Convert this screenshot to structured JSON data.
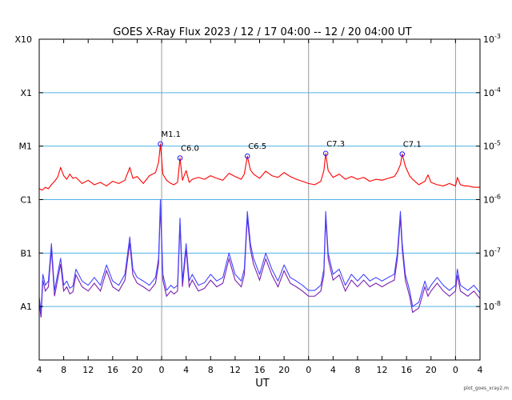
{
  "chart_data": {
    "type": "line",
    "title": "GOES X-Ray Flux   2023 / 12 / 17   04:00 -- 12 / 20   04:00   UT",
    "xlabel": "UT",
    "footer": "plot_goes_xray2.m",
    "x_ticks": [
      "4",
      "8",
      "12",
      "16",
      "20",
      "0",
      "4",
      "8",
      "12",
      "16",
      "20",
      "0",
      "4",
      "8",
      "12",
      "16",
      "20",
      "0",
      "4"
    ],
    "x_range_hours": [
      0,
      72
    ],
    "day_boundaries_hours": [
      20,
      44,
      68
    ],
    "y_scale": "log",
    "y_range": [
      1e-09,
      0.001
    ],
    "left_ticks": [
      {
        "label": "A1",
        "value": 1e-08
      },
      {
        "label": "B1",
        "value": 1e-07
      },
      {
        "label": "C1",
        "value": 1e-06
      },
      {
        "label": "M1",
        "value": 1e-05
      },
      {
        "label": "X1",
        "value": 0.0001
      },
      {
        "label": "X10",
        "value": 0.001
      }
    ],
    "right_ticks": [
      {
        "base": "10",
        "exp": "-8",
        "value": 1e-08
      },
      {
        "base": "10",
        "exp": "-7",
        "value": 1e-07
      },
      {
        "base": "10",
        "exp": "-6",
        "value": 1e-06
      },
      {
        "base": "10",
        "exp": "-5",
        "value": 1e-05
      },
      {
        "base": "10",
        "exp": "-4",
        "value": 0.0001
      },
      {
        "base": "10",
        "exp": "-3",
        "value": 0.001
      }
    ],
    "class_gridlines": [
      1e-08,
      1e-07,
      1e-06,
      1e-05,
      0.0001
    ],
    "flares": [
      {
        "label": "M1.1",
        "x": 19.8,
        "value": 1.1e-05
      },
      {
        "label": "C6.0",
        "x": 23.0,
        "value": 6e-06
      },
      {
        "label": "C6.5",
        "x": 34.0,
        "value": 6.5e-06
      },
      {
        "label": "C7.3",
        "x": 46.8,
        "value": 7.3e-06
      },
      {
        "label": "C7.1",
        "x": 59.3,
        "value": 7.1e-06
      }
    ],
    "series": [
      {
        "id": "long",
        "color": "#ff0000",
        "x": [
          0,
          0.5,
          1,
          1.5,
          2,
          2.5,
          3,
          3.5,
          4,
          4.5,
          5,
          5.5,
          6,
          7,
          8,
          9,
          10,
          11,
          12,
          13,
          14,
          14.8,
          15.3,
          16,
          17,
          18,
          19,
          19.5,
          19.8,
          20.2,
          20.8,
          21.5,
          22,
          22.6,
          23,
          23.4,
          24,
          24.5,
          25,
          26,
          27,
          28,
          29,
          30,
          31,
          32,
          33,
          33.5,
          34,
          34.5,
          35,
          36,
          37,
          38,
          39,
          40,
          41,
          42,
          43,
          44,
          45,
          46,
          46.5,
          46.8,
          47.2,
          48,
          49,
          50,
          51,
          52,
          53,
          54,
          55,
          56,
          57,
          58,
          58.5,
          59,
          59.3,
          59.8,
          60.5,
          61,
          62,
          63,
          63.5,
          64,
          65,
          66,
          67,
          68,
          68.3,
          68.8,
          69.5,
          70,
          71,
          72
        ],
        "values": [
          1.6e-06,
          1.5e-06,
          1.7e-06,
          1.6e-06,
          1.9e-06,
          2.2e-06,
          2.6e-06,
          4e-06,
          2.8e-06,
          2.4e-06,
          3e-06,
          2.5e-06,
          2.6e-06,
          2e-06,
          2.3e-06,
          1.9e-06,
          2.1e-06,
          1.8e-06,
          2.2e-06,
          2e-06,
          2.3e-06,
          4e-06,
          2.5e-06,
          2.7e-06,
          2e-06,
          2.8e-06,
          3.2e-06,
          5e-06,
          1.1e-05,
          3e-06,
          2.3e-06,
          2e-06,
          1.9e-06,
          2.1e-06,
          6e-06,
          2.3e-06,
          3.5e-06,
          2.1e-06,
          2.4e-06,
          2.6e-06,
          2.4e-06,
          2.8e-06,
          2.5e-06,
          2.3e-06,
          3.1e-06,
          2.7e-06,
          2.4e-06,
          3e-06,
          6.5e-06,
          3.6e-06,
          3e-06,
          2.5e-06,
          3.4e-06,
          2.8e-06,
          2.6e-06,
          3.2e-06,
          2.7e-06,
          2.4e-06,
          2.2e-06,
          2e-06,
          1.9e-06,
          2.2e-06,
          3.5e-06,
          7.3e-06,
          3.5e-06,
          2.6e-06,
          3e-06,
          2.4e-06,
          2.7e-06,
          2.4e-06,
          2.6e-06,
          2.2e-06,
          2.4e-06,
          2.3e-06,
          2.5e-06,
          2.7e-06,
          3.3e-06,
          4.5e-06,
          7.1e-06,
          4.2e-06,
          2.8e-06,
          2.4e-06,
          1.9e-06,
          2.2e-06,
          2.9e-06,
          2.1e-06,
          1.9e-06,
          1.8e-06,
          2e-06,
          1.8e-06,
          2.6e-06,
          1.9e-06,
          1.8e-06,
          1.8e-06,
          1.7e-06,
          1.7e-06
        ]
      },
      {
        "id": "short",
        "color": "#4444ff",
        "x": [
          0,
          0.3,
          0.6,
          1,
          1.5,
          2,
          2.5,
          3,
          3.5,
          4,
          4.5,
          5,
          5.5,
          6,
          7,
          8,
          9,
          10,
          11,
          12,
          13,
          14,
          14.8,
          15.3,
          16,
          17,
          18,
          19,
          19.5,
          19.8,
          20.2,
          20.8,
          21.5,
          22,
          22.6,
          23,
          23.4,
          24,
          24.5,
          25,
          26,
          27,
          28,
          29,
          30,
          31,
          32,
          33,
          33.5,
          34,
          34.5,
          35,
          36,
          37,
          38,
          39,
          40,
          41,
          42,
          43,
          44,
          45,
          46,
          46.5,
          46.8,
          47.2,
          48,
          49,
          50,
          51,
          52,
          53,
          54,
          55,
          56,
          57,
          58,
          58.5,
          59,
          59.3,
          59.8,
          60.5,
          61,
          62,
          63,
          63.5,
          64,
          65,
          66,
          67,
          68,
          68.3,
          68.8,
          69.5,
          70,
          71,
          72
        ],
        "values": [
          1.5e-08,
          8e-09,
          4e-08,
          2.5e-08,
          3e-08,
          1.5e-07,
          2e-08,
          4e-08,
          8e-08,
          2.5e-08,
          3e-08,
          2.2e-08,
          2.4e-08,
          5e-08,
          3e-08,
          2.5e-08,
          3.5e-08,
          2.5e-08,
          6e-08,
          3e-08,
          2.5e-08,
          4e-08,
          2e-07,
          5e-08,
          3.5e-08,
          3e-08,
          2.5e-08,
          3.5e-08,
          8e-08,
          1e-06,
          4e-08,
          2e-08,
          2.5e-08,
          2.2e-08,
          2.5e-08,
          4.5e-07,
          3e-08,
          1.5e-07,
          3e-08,
          4e-08,
          2.5e-08,
          2.8e-08,
          4e-08,
          3e-08,
          3.5e-08,
          1e-07,
          4e-08,
          3e-08,
          5e-08,
          6e-07,
          1.5e-07,
          8e-08,
          4e-08,
          1e-07,
          5e-08,
          3e-08,
          6e-08,
          3.5e-08,
          3e-08,
          2.5e-08,
          2e-08,
          2e-08,
          2.5e-08,
          5e-08,
          6e-07,
          1e-07,
          4e-08,
          5e-08,
          2.5e-08,
          4e-08,
          3e-08,
          4e-08,
          3e-08,
          3.5e-08,
          3e-08,
          3.5e-08,
          4e-08,
          1e-07,
          6e-07,
          1.5e-07,
          4e-08,
          2e-08,
          1e-08,
          1.2e-08,
          3e-08,
          2e-08,
          2.5e-08,
          3.5e-08,
          2.5e-08,
          2e-08,
          2.5e-08,
          5e-08,
          2.5e-08,
          2.2e-08,
          2e-08,
          2.5e-08,
          1.8e-08
        ]
      }
    ]
  }
}
